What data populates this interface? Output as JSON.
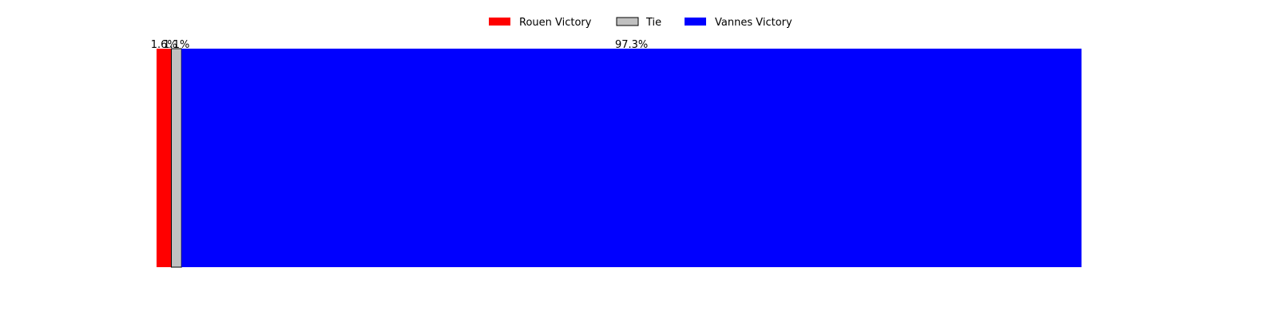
{
  "chart_data": {
    "type": "bar",
    "orientation": "horizontal-stacked-100",
    "title": "",
    "xlabel": "",
    "ylabel": "",
    "axes_visible": false,
    "grid": false,
    "legend_position": "top-center",
    "xlim": [
      0,
      100
    ],
    "series": [
      {
        "name": "Rouen Victory",
        "value": 1.6,
        "label": "1.6%",
        "color": "#ff0000",
        "edge": "none"
      },
      {
        "name": "Tie",
        "value": 1.1,
        "label": "1.1%",
        "color": "#c0c0c0",
        "edge": "#000000"
      },
      {
        "name": "Vannes Victory",
        "value": 97.3,
        "label": "97.3%",
        "color": "#0000ff",
        "edge": "none"
      }
    ]
  }
}
